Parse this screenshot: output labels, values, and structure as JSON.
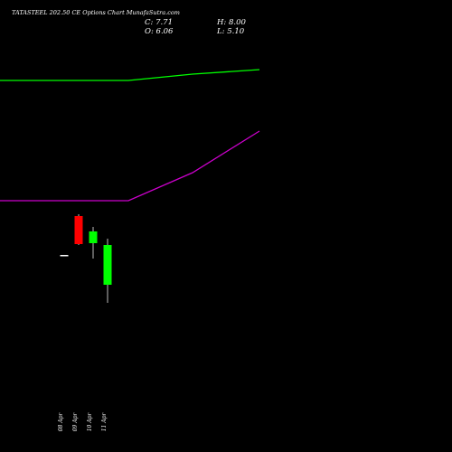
{
  "header": {
    "title": "TATASTEEL 202.50 CE Options Chart MunafaSutra.com",
    "close_label": "C: 7.71",
    "high_label": "H: 8.00",
    "open_label": "O: 6.06",
    "low_label": "L: 5.10"
  },
  "colors": {
    "background": "#000000",
    "text": "#ffffff",
    "up_candle": "#00ff00",
    "down_candle": "#ff0000",
    "doji": "#ffffff",
    "green_line": "#00ff00",
    "magenta_line": "#cc00cc"
  },
  "chart_data": {
    "type": "candlestick",
    "title": "TATASTEEL 202.50 CE Options Chart MunafaSutra.com",
    "x_categories": [
      "08 Apr",
      "09 Apr",
      "10 Apr",
      "11 Apr"
    ],
    "candles": [
      {
        "open": 4.55,
        "high": 4.55,
        "low": 4.55,
        "close": 4.55
      },
      {
        "open": 6.7,
        "high": 6.8,
        "low": 5.1,
        "close": 5.15
      },
      {
        "open": 5.2,
        "high": 6.1,
        "low": 4.35,
        "close": 5.85
      },
      {
        "open": 2.9,
        "high": 5.45,
        "low": 1.9,
        "close": 5.1
      }
    ],
    "last_ohlc": {
      "open": 6.06,
      "high": 8.0,
      "low": 5.1,
      "close": 7.71
    },
    "overlay_lines": [
      {
        "color": "green",
        "points": [
          {
            "x": "08 Apr",
            "y": 14.2
          },
          {
            "x": "09 Apr",
            "y": 14.2
          },
          {
            "x": "10 Apr",
            "y": 14.55
          },
          {
            "x": "11 Apr",
            "y": 14.8
          }
        ]
      },
      {
        "color": "magenta",
        "points": [
          {
            "x": "08 Apr",
            "y": 7.55
          },
          {
            "x": "09 Apr",
            "y": 7.55
          },
          {
            "x": "10 Apr",
            "y": 9.1
          },
          {
            "x": "11 Apr",
            "y": 11.4
          }
        ]
      }
    ],
    "grid": false,
    "legend": "none"
  }
}
